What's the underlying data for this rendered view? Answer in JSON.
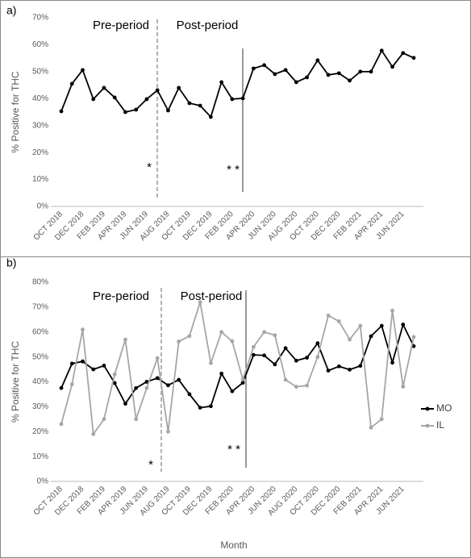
{
  "chart_data": [
    {
      "type": "line",
      "panel_label": "a)",
      "ylabel": "% Positive for THC",
      "categories": [
        "OCT 2018",
        null,
        "DEC 2018",
        null,
        "FEB 2019",
        null,
        "APR 2019",
        null,
        "JUN 2019",
        null,
        "AUG 2019",
        null,
        "OCT 2019",
        null,
        "DEC 2019",
        null,
        "FEB 2020",
        null,
        "APR 2020",
        null,
        "JUN 2020",
        null,
        "AUG 2020",
        null,
        "OCT 2020",
        null,
        "DEC 2020",
        null,
        "FEB 2021",
        null,
        "APR 2021",
        null,
        "JUN 2021",
        null
      ],
      "values": [
        35.3,
        45.5,
        50.6,
        39.8,
        44,
        40.4,
        35,
        35.9,
        39.8,
        43.1,
        35.6,
        44,
        38.3,
        37.4,
        33.2,
        46.1,
        39.8,
        40.1,
        51.2,
        52.4,
        49.1,
        50.6,
        46.1,
        47.9,
        54.2,
        48.8,
        49.4,
        46.7,
        50,
        50,
        57.8,
        51.8,
        56.9,
        55.1
      ],
      "color": "#000000",
      "ylim": [
        0,
        70
      ],
      "yticks": [
        {
          "value": 0,
          "label": "0%"
        },
        {
          "value": 10,
          "label": "10%"
        },
        {
          "value": 20,
          "label": "20%"
        },
        {
          "value": 30,
          "label": "30%"
        },
        {
          "value": 40,
          "label": "40%"
        },
        {
          "value": 50,
          "label": "50%"
        },
        {
          "value": 60,
          "label": "60%"
        },
        {
          "value": 70,
          "label": "70%"
        }
      ],
      "annotations": [
        "Pre-period",
        "Post-period",
        "*",
        "* *"
      ]
    },
    {
      "type": "line",
      "panel_label": "b)",
      "ylabel": "% Positive for THC",
      "xlabel": "Month",
      "categories": [
        "OCT 2018",
        null,
        "DEC 2018",
        null,
        "FEB 2019",
        null,
        "APR 2019",
        null,
        "JUN 2019",
        null,
        "AUG 2019",
        null,
        "OCT 2019",
        null,
        "DEC 2019",
        null,
        "FEB 2020",
        null,
        "APR 2020",
        null,
        "JUN 2020",
        null,
        "AUG 2020",
        null,
        "OCT 2020",
        null,
        "DEC 2020",
        null,
        "FEB 2021",
        null,
        "APR 2021",
        null,
        "JUN 2021",
        null
      ],
      "series": [
        {
          "name": "MO",
          "color": "#000000",
          "values": [
            37.5,
            47.3,
            48.2,
            45,
            46.5,
            39.5,
            31.2,
            37.5,
            40,
            41.5,
            38.6,
            40.8,
            35,
            29.6,
            30.2,
            43.3,
            36.2,
            39.6,
            50.8,
            50.6,
            47,
            53.5,
            48.5,
            49.7,
            55.5,
            44.5,
            46.2,
            44.9,
            46.4,
            58.3,
            62.5,
            47.7,
            63,
            54.3
          ]
        },
        {
          "name": "IL",
          "color": "#a6a6a6",
          "values": [
            23,
            39,
            61,
            19,
            25,
            43,
            57,
            25,
            37.5,
            49.5,
            20,
            56.2,
            58.4,
            72,
            47.5,
            60,
            56.3,
            41,
            54,
            60,
            58.7,
            40.8,
            38,
            38.5,
            50,
            66.6,
            64.3,
            57,
            62.5,
            21.6,
            25,
            68.6,
            38.1,
            58
          ]
        }
      ],
      "ylim": [
        0,
        80
      ],
      "yticks": [
        {
          "value": 0,
          "label": "0%"
        },
        {
          "value": 10,
          "label": "10%"
        },
        {
          "value": 20,
          "label": "20%"
        },
        {
          "value": 30,
          "label": "30%"
        },
        {
          "value": 40,
          "label": "40%"
        },
        {
          "value": 50,
          "label": "50%"
        },
        {
          "value": 60,
          "label": "60%"
        },
        {
          "value": 70,
          "label": "70%"
        },
        {
          "value": 80,
          "label": "80%"
        }
      ],
      "annotations": [
        "Pre-period",
        "Post-period",
        "*",
        "* *"
      ]
    }
  ]
}
